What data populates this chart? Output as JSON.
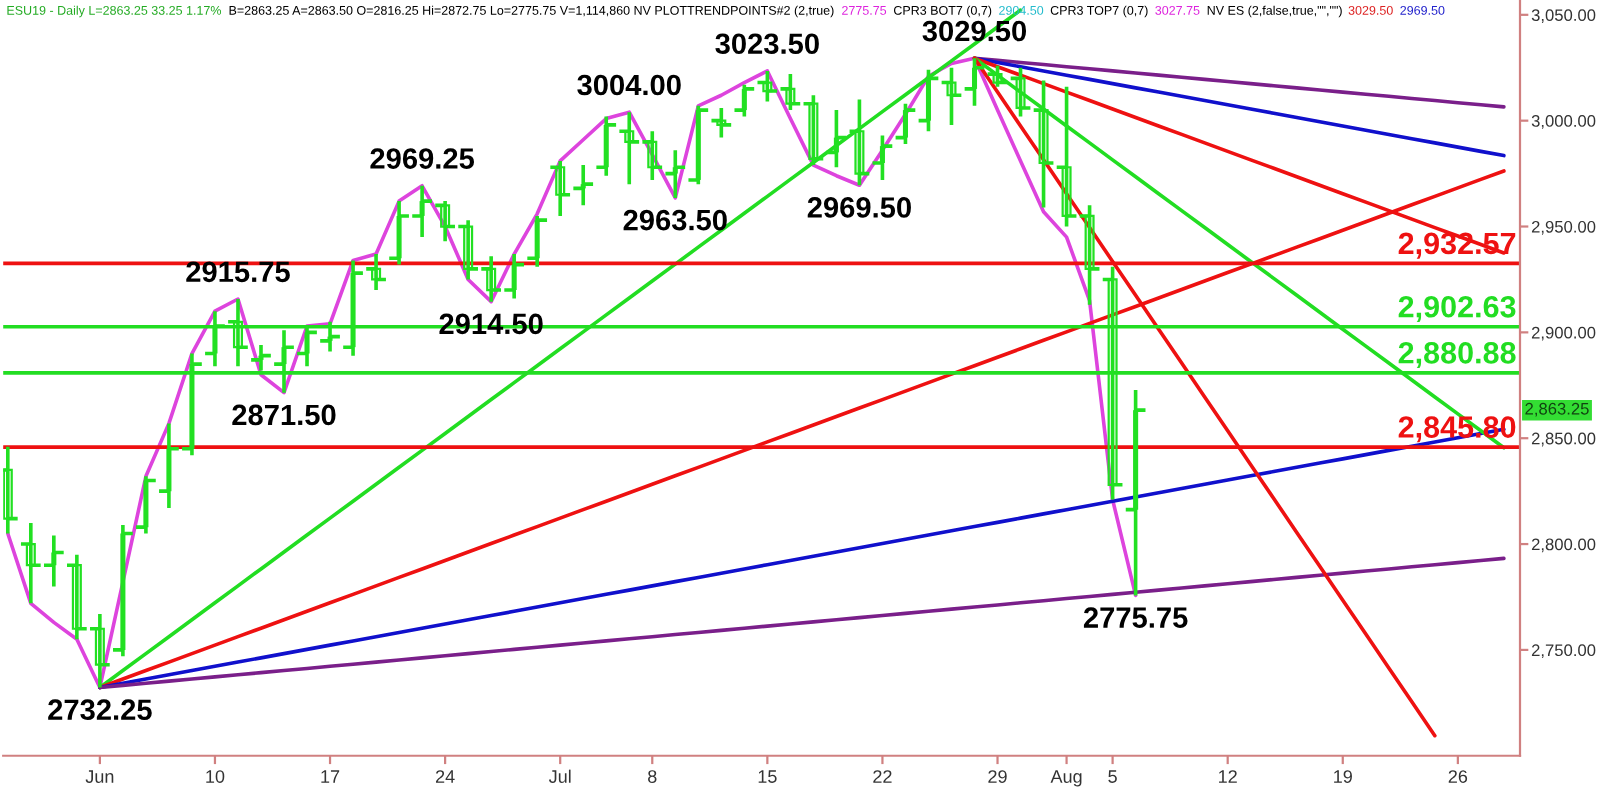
{
  "chart_data": {
    "type": "candlestick",
    "color": "#22e022",
    "categories": [
      null,
      null,
      null,
      null,
      "Jun",
      null,
      null,
      null,
      null,
      "10",
      null,
      null,
      null,
      null,
      "17",
      null,
      null,
      null,
      null,
      "24",
      null,
      null,
      null,
      null,
      "Jul",
      null,
      null,
      null,
      "8",
      null,
      null,
      null,
      null,
      "15",
      null,
      null,
      null,
      null,
      "22",
      null,
      null,
      null,
      null,
      "29",
      null,
      null,
      "Aug",
      null,
      "5",
      null,
      null,
      null,
      null,
      "12",
      null,
      null,
      null,
      null,
      "19",
      null,
      null,
      null,
      null,
      "26",
      null,
      null
    ],
    "ohlc": [
      [
        2835,
        2846,
        2805,
        2812
      ],
      [
        2800,
        2810,
        2772,
        2790
      ],
      [
        2790,
        2804,
        2780,
        2796
      ],
      [
        2790,
        2795,
        2755,
        2760
      ],
      [
        2760,
        2767,
        2732.25,
        2743
      ],
      [
        2750,
        2809,
        2747,
        2805
      ],
      [
        2808,
        2832,
        2805,
        2830
      ],
      [
        2825,
        2857,
        2817,
        2845
      ],
      [
        2845,
        2890,
        2842,
        2885
      ],
      [
        2890,
        2910,
        2884,
        2903
      ],
      [
        2905,
        2915.75,
        2884,
        2893
      ],
      [
        2887,
        2894,
        2882,
        2889
      ],
      [
        2885,
        2901,
        2871.5,
        2893
      ],
      [
        2890,
        2903,
        2884,
        2900
      ],
      [
        2896,
        2905,
        2891,
        2898
      ],
      [
        2893,
        2934,
        2889,
        2928
      ],
      [
        2930,
        2937,
        2920,
        2925
      ],
      [
        2935,
        2962,
        2932,
        2955
      ],
      [
        2955,
        2969.25,
        2945,
        2962
      ],
      [
        2960,
        2962,
        2943,
        2950
      ],
      [
        2950,
        2953,
        2925,
        2930
      ],
      [
        2930,
        2936,
        2914.5,
        2920
      ],
      [
        2920,
        2937,
        2916,
        2932
      ],
      [
        2935,
        2955,
        2931,
        2953
      ],
      [
        2978,
        2981,
        2955,
        2965
      ],
      [
        2968,
        2979,
        2960,
        2970
      ],
      [
        2978,
        3002,
        2974,
        2998
      ],
      [
        2995,
        3004,
        2970,
        2990
      ],
      [
        2990,
        2995,
        2972,
        2978
      ],
      [
        2975,
        2986,
        2963.5,
        2978
      ],
      [
        2972,
        3007,
        2970,
        3005
      ],
      [
        3000,
        3006,
        2992,
        2998
      ],
      [
        3005,
        3017,
        3002,
        3015
      ],
      [
        3018,
        3023.5,
        3009,
        3014
      ],
      [
        3015,
        3022,
        3005,
        3008
      ],
      [
        3008,
        3012,
        2979,
        2982
      ],
      [
        2985,
        3005,
        2978,
        2992
      ],
      [
        2995,
        3010,
        2969.5,
        2975
      ],
      [
        2980,
        2993,
        2972,
        2988
      ],
      [
        2992,
        3008,
        2989,
        3005
      ],
      [
        3000,
        3024,
        2995,
        3020
      ],
      [
        3018,
        3025,
        2998,
        3012
      ],
      [
        3015,
        3029.5,
        3007,
        3025
      ],
      [
        3022,
        3026,
        3016,
        3018
      ],
      [
        3020,
        3025,
        3002,
        3006
      ],
      [
        3005,
        3019,
        2959,
        2980
      ],
      [
        2978,
        3016,
        2950,
        2955
      ],
      [
        2955,
        2960,
        2913,
        2930
      ],
      [
        2925,
        2931,
        2821,
        2828
      ],
      [
        2816.25,
        2872.75,
        2775.75,
        2863.25
      ],
      null,
      null,
      null,
      null,
      null,
      null,
      null,
      null,
      null,
      null,
      null,
      null,
      null,
      null,
      null,
      null
    ],
    "series": [
      {
        "type": "line",
        "color": "#dd44dd",
        "values": [
          2805,
          2772,
          2763,
          2755,
          2732.25,
          2782,
          2832,
          2857,
          2890,
          2910,
          2915.75,
          2880,
          2871.5,
          2903,
          2904,
          2934,
          2937,
          2962,
          2969.25,
          2950,
          2925,
          2914.5,
          2937,
          2956,
          2981,
          2991,
          3001,
          3004,
          2984,
          2963.5,
          3007,
          3012,
          3018,
          3023.5,
          3001,
          2979,
          2974,
          2969.5,
          2986,
          3003,
          3021,
          3027,
          3029.5,
          3005,
          2981,
          2957,
          2945,
          2915,
          2821,
          2775.75,
          null,
          null,
          null,
          null,
          null,
          null,
          null,
          null,
          null,
          null,
          null,
          null,
          null,
          null,
          null,
          null
        ]
      },
      {
        "type": "line",
        "color": "#22dd22",
        "values": [
          null,
          null,
          null,
          null,
          2732.25,
          2740.25,
          2748.25,
          2756.25,
          2764.25,
          2772.25,
          2780.25,
          2788.25,
          2796.25,
          2804.25,
          2812.25,
          2820.25,
          2828.25,
          2836.25,
          2844.25,
          2852.25,
          2860.25,
          2868.25,
          2876.25,
          2884.25,
          2892.25,
          2900.25,
          2908.25,
          2916.25,
          2924.25,
          2932.25,
          2940.25,
          2948.25,
          2956.25,
          2964.25,
          2972.25,
          2980.25,
          2988.25,
          2996.25,
          3004.25,
          3012.25,
          3020.25,
          3028.25,
          3036.25,
          3044.25,
          3052.25,
          null,
          null,
          null,
          null,
          null,
          null,
          null,
          null,
          null,
          null,
          null,
          null,
          null,
          null,
          null,
          null,
          null,
          null,
          null,
          null,
          null
        ]
      },
      {
        "type": "line",
        "color": "#ee1111",
        "values": [
          null,
          null,
          null,
          null,
          2732.25,
          2736.25,
          2740.25,
          2744.25,
          2748.25,
          2752.25,
          2756.25,
          2760.25,
          2764.25,
          2768.25,
          2772.25,
          2776.25,
          2780.25,
          2784.25,
          2788.25,
          2792.25,
          2796.25,
          2800.25,
          2804.25,
          2808.25,
          2812.25,
          2816.25,
          2820.25,
          2824.25,
          2828.25,
          2832.25,
          2836.25,
          2840.25,
          2844.25,
          2848.25,
          2852.25,
          2856.25,
          2860.25,
          2864.25,
          2868.25,
          2872.25,
          2876.25,
          2880.25,
          2884.25,
          2888.25,
          2892.25,
          2896.25,
          2900.25,
          2904.25,
          2908.25,
          2912.25,
          2916.25,
          2920.25,
          2924.25,
          2928.25,
          2932.25,
          2936.25,
          2940.25,
          2944.25,
          2948.25,
          2952.25,
          2956.25,
          2960.25,
          2964.25,
          2968.25,
          2972.25,
          2976.25
        ]
      },
      {
        "type": "line",
        "color": "#1010cc",
        "values": [
          null,
          null,
          null,
          null,
          2732.25,
          2734.25,
          2736.25,
          2738.25,
          2740.25,
          2742.25,
          2744.25,
          2746.25,
          2748.25,
          2750.25,
          2752.25,
          2754.25,
          2756.25,
          2758.25,
          2760.25,
          2762.25,
          2764.25,
          2766.25,
          2768.25,
          2770.25,
          2772.25,
          2774.25,
          2776.25,
          2778.25,
          2780.25,
          2782.25,
          2784.25,
          2786.25,
          2788.25,
          2790.25,
          2792.25,
          2794.25,
          2796.25,
          2798.25,
          2800.25,
          2802.25,
          2804.25,
          2806.25,
          2808.25,
          2810.25,
          2812.25,
          2814.25,
          2816.25,
          2818.25,
          2820.25,
          2822.25,
          2824.25,
          2826.25,
          2828.25,
          2830.25,
          2832.25,
          2834.25,
          2836.25,
          2838.25,
          2840.25,
          2842.25,
          2844.25,
          2846.25,
          2848.25,
          2850.25,
          2852.25,
          2854.25
        ]
      },
      {
        "type": "line",
        "color": "#7a1f8a",
        "values": [
          null,
          null,
          null,
          null,
          2732.25,
          2733.25,
          2734.25,
          2735.25,
          2736.25,
          2737.25,
          2738.25,
          2739.25,
          2740.25,
          2741.25,
          2742.25,
          2743.25,
          2744.25,
          2745.25,
          2746.25,
          2747.25,
          2748.25,
          2749.25,
          2750.25,
          2751.25,
          2752.25,
          2753.25,
          2754.25,
          2755.25,
          2756.25,
          2757.25,
          2758.25,
          2759.25,
          2760.25,
          2761.25,
          2762.25,
          2763.25,
          2764.25,
          2765.25,
          2766.25,
          2767.25,
          2768.25,
          2769.25,
          2770.25,
          2771.25,
          2772.25,
          2773.25,
          2774.25,
          2775.25,
          2776.25,
          2777.25,
          2778.25,
          2779.25,
          2780.25,
          2781.25,
          2782.25,
          2783.25,
          2784.25,
          2785.25,
          2786.25,
          2787.25,
          2788.25,
          2789.25,
          2790.25,
          2791.25,
          2792.25,
          2793.25
        ]
      },
      {
        "type": "line",
        "color": "#7a1f8a",
        "values": [
          null,
          null,
          null,
          null,
          null,
          null,
          null,
          null,
          null,
          null,
          null,
          null,
          null,
          null,
          null,
          null,
          null,
          null,
          null,
          null,
          null,
          null,
          null,
          null,
          null,
          null,
          null,
          null,
          null,
          null,
          null,
          null,
          null,
          null,
          null,
          null,
          null,
          null,
          null,
          null,
          null,
          null,
          3029.5,
          3028.5,
          3027.5,
          3026.5,
          3025.5,
          3024.5,
          3023.5,
          3022.5,
          3021.5,
          3020.5,
          3019.5,
          3018.5,
          3017.5,
          3016.5,
          3015.5,
          3014.5,
          3013.5,
          3012.5,
          3011.5,
          3010.5,
          3009.5,
          3008.5,
          3007.5,
          3006.5
        ]
      },
      {
        "type": "line",
        "color": "#1010cc",
        "values": [
          null,
          null,
          null,
          null,
          null,
          null,
          null,
          null,
          null,
          null,
          null,
          null,
          null,
          null,
          null,
          null,
          null,
          null,
          null,
          null,
          null,
          null,
          null,
          null,
          null,
          null,
          null,
          null,
          null,
          null,
          null,
          null,
          null,
          null,
          null,
          null,
          null,
          null,
          null,
          null,
          null,
          null,
          3029.5,
          3027.5,
          3025.5,
          3023.5,
          3021.5,
          3019.5,
          3017.5,
          3015.5,
          3013.5,
          3011.5,
          3009.5,
          3007.5,
          3005.5,
          3003.5,
          3001.5,
          2999.5,
          2997.5,
          2995.5,
          2993.5,
          2991.5,
          2989.5,
          2987.5,
          2985.5,
          2983.5
        ]
      },
      {
        "type": "line",
        "color": "#ee1111",
        "values": [
          null,
          null,
          null,
          null,
          null,
          null,
          null,
          null,
          null,
          null,
          null,
          null,
          null,
          null,
          null,
          null,
          null,
          null,
          null,
          null,
          null,
          null,
          null,
          null,
          null,
          null,
          null,
          null,
          null,
          null,
          null,
          null,
          null,
          null,
          null,
          null,
          null,
          null,
          null,
          null,
          null,
          null,
          3029.5,
          3025.5,
          3021.5,
          3017.5,
          3013.5,
          3009.5,
          3005.5,
          3001.5,
          2997.5,
          2993.5,
          2989.5,
          2985.5,
          2981.5,
          2977.5,
          2973.5,
          2969.5,
          2965.5,
          2961.5,
          2957.5,
          2953.5,
          2949.5,
          2945.5,
          2941.5,
          2937.5
        ]
      },
      {
        "type": "line",
        "color": "#22dd22",
        "values": [
          null,
          null,
          null,
          null,
          null,
          null,
          null,
          null,
          null,
          null,
          null,
          null,
          null,
          null,
          null,
          null,
          null,
          null,
          null,
          null,
          null,
          null,
          null,
          null,
          null,
          null,
          null,
          null,
          null,
          null,
          null,
          null,
          null,
          null,
          null,
          null,
          null,
          null,
          null,
          null,
          null,
          null,
          3029.5,
          3021.5,
          3013.5,
          3005.5,
          2997.5,
          2989.5,
          2981.5,
          2973.5,
          2965.5,
          2957.5,
          2949.5,
          2941.5,
          2933.5,
          2925.5,
          2917.5,
          2909.5,
          2901.5,
          2893.5,
          2885.5,
          2877.5,
          2869.5,
          2861.5,
          2853.5,
          2845.5
        ]
      },
      {
        "type": "line",
        "color": "#ee1111",
        "values": [
          null,
          null,
          null,
          null,
          null,
          null,
          null,
          null,
          null,
          null,
          null,
          null,
          null,
          null,
          null,
          null,
          null,
          null,
          null,
          null,
          null,
          null,
          null,
          null,
          null,
          null,
          null,
          null,
          null,
          null,
          null,
          null,
          null,
          null,
          null,
          null,
          null,
          null,
          null,
          null,
          null,
          null,
          3029.5,
          3013.5,
          2997.5,
          2981.5,
          2965.5,
          2949.5,
          2933.5,
          2917.5,
          2901.5,
          2885.5,
          2869.5,
          2853.5,
          2837.5,
          2821.5,
          2805.5,
          2789.5,
          2773.5,
          2757.5,
          2741.5,
          2725.5,
          2709.5,
          null,
          null,
          null
        ]
      }
    ],
    "ref_lines": [
      {
        "axis": "y",
        "value": 2932.57,
        "label": "2,932.57",
        "color": "#ee1111"
      },
      {
        "axis": "y",
        "value": 2902.63,
        "label": "2,902.63",
        "color": "#22dd22"
      },
      {
        "axis": "y",
        "value": 2880.88,
        "label": "2,880.88",
        "color": "#22dd22"
      },
      {
        "axis": "y",
        "value": 2845.8,
        "label": "2,845.80",
        "color": "#ee1111"
      }
    ],
    "annotations": [
      "ESU19 - Daily L=2863.25 33.25 1.17%",
      "B=2863.25 A=2863.50 O=2816.25 Hi=2872.75 Lo=2775.75 V=1,114,860 NV PLOTTRENDPOINTS#2 (2,true)",
      "2775.75",
      "CPR3 BOT7 (0,7)",
      "2904.50",
      "CPR3 TOP7 (0,7)",
      "3027.75",
      "NV ES (2,false,true,\"\",\"\")",
      "3029.50",
      "2969.50",
      {
        "text": "2732.25",
        "y": 2732.25
      },
      {
        "text": "2915.75",
        "y": 2915.75
      },
      {
        "text": "2871.50",
        "y": 2871.5
      },
      {
        "text": "2969.25",
        "y": 2969.25
      },
      {
        "text": "2914.50",
        "y": 2914.5
      },
      {
        "text": "3004.00",
        "y": 3004
      },
      {
        "text": "2963.50",
        "y": 2963.5
      },
      {
        "text": "3023.50",
        "y": 3023.5
      },
      {
        "text": "2969.50",
        "y": 2969.5
      },
      {
        "text": "3029.50",
        "y": 3029.5
      },
      {
        "text": "2775.75",
        "y": 2775.75
      },
      "2,863.25"
    ],
    "ylim": [
      2700,
      3057
    ],
    "yticks": [
      {
        "value": 2750,
        "label": "2,750.00"
      },
      {
        "value": 2800,
        "label": "2,800.00"
      },
      {
        "value": 2850,
        "label": "2,850.00"
      },
      {
        "value": 2900,
        "label": "2,900.00"
      },
      {
        "value": 2950,
        "label": "2,950.00"
      },
      {
        "value": 3000,
        "label": "3,000.00"
      },
      {
        "value": 3050,
        "label": "3,050.00"
      }
    ],
    "grid": false
  }
}
